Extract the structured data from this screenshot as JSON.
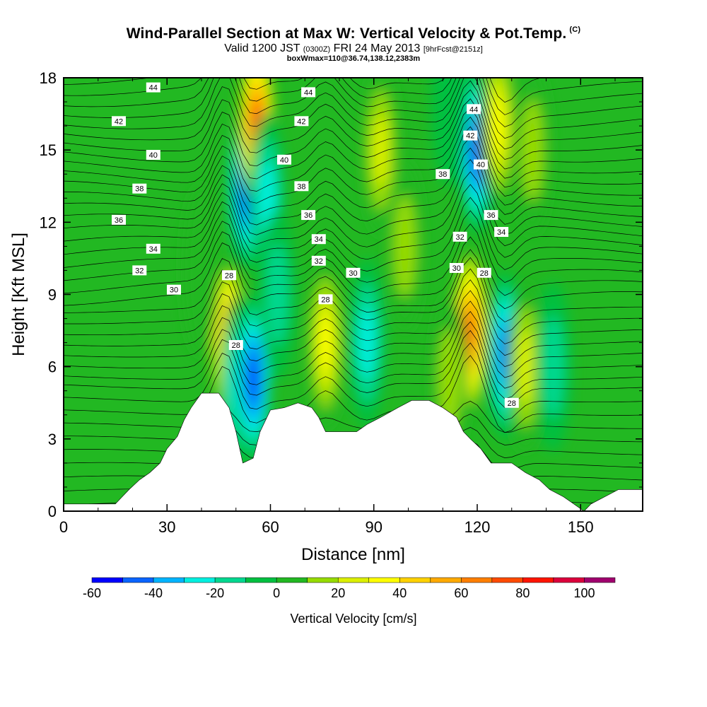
{
  "header": {
    "title": "Wind-Parallel Section at Max W: Vertical Velocity & Pot.Temp.",
    "title_unit": "(C)",
    "valid_prefix": "Valid 1200 JST",
    "valid_utc": "(0300Z)",
    "valid_date": "FRI 24 May 2013",
    "forecast": "[9hrFcst@2151z]",
    "boxline": "boxWmax=110@36.74,138.12,2383m"
  },
  "chart_data": {
    "type": "heatmap",
    "xlabel": "Distance [nm]",
    "ylabel": "Height [Kft MSL]",
    "xlim": [
      0,
      168
    ],
    "ylim": [
      0,
      18
    ],
    "xticks": [
      0,
      30,
      60,
      90,
      120,
      150
    ],
    "yticks": [
      0,
      3,
      6,
      9,
      12,
      15,
      18
    ],
    "colorbar": {
      "title": "Vertical Velocity [cm/s]",
      "levels": [
        -60,
        -50,
        -40,
        -30,
        -20,
        -10,
        0,
        10,
        20,
        30,
        40,
        50,
        60,
        70,
        80,
        90,
        100,
        110
      ],
      "tick_labels": [
        -60,
        -40,
        -20,
        0,
        20,
        40,
        60,
        80,
        100
      ],
      "colors": [
        "#0000ff",
        "#0a64ff",
        "#00b4ff",
        "#00f0e0",
        "#00d890",
        "#00c040",
        "#22b822",
        "#96dc00",
        "#dcf000",
        "#ffff00",
        "#ffd200",
        "#ffaa00",
        "#ff7f00",
        "#ff4b00",
        "#ff1400",
        "#dc003c",
        "#a0006e",
        "#6e0096"
      ]
    },
    "terrain": [
      [
        0,
        0.3
      ],
      [
        15,
        0.3
      ],
      [
        17,
        0.6
      ],
      [
        19,
        0.9
      ],
      [
        22,
        1.3
      ],
      [
        25,
        1.6
      ],
      [
        28,
        2.0
      ],
      [
        30,
        2.6
      ],
      [
        33,
        3.1
      ],
      [
        35,
        3.8
      ],
      [
        37,
        4.3
      ],
      [
        40,
        4.9
      ],
      [
        45,
        4.9
      ],
      [
        48,
        4.3
      ],
      [
        50,
        3.3
      ],
      [
        52,
        2.0
      ],
      [
        55,
        2.2
      ],
      [
        57,
        3.3
      ],
      [
        60,
        4.2
      ],
      [
        64,
        4.3
      ],
      [
        68,
        4.5
      ],
      [
        72,
        4.3
      ],
      [
        74,
        3.9
      ],
      [
        76,
        3.3
      ],
      [
        85,
        3.3
      ],
      [
        88,
        3.6
      ],
      [
        92,
        3.9
      ],
      [
        97,
        4.3
      ],
      [
        101,
        4.6
      ],
      [
        106,
        4.6
      ],
      [
        110,
        4.3
      ],
      [
        114,
        3.9
      ],
      [
        116,
        3.3
      ],
      [
        118,
        3.0
      ],
      [
        121,
        2.6
      ],
      [
        124,
        2.0
      ],
      [
        130,
        2.0
      ],
      [
        134,
        1.6
      ],
      [
        138,
        1.3
      ],
      [
        141,
        0.9
      ],
      [
        145,
        0.6
      ],
      [
        148,
        0.3
      ],
      [
        151,
        0.0
      ],
      [
        153,
        0.3
      ],
      [
        157,
        0.6
      ],
      [
        161,
        0.9
      ],
      [
        168,
        0.9
      ]
    ],
    "cells": [
      {
        "x": 48,
        "y": 7.0,
        "w": 83
      },
      {
        "x": 51,
        "y": 5.5,
        "w": -40
      },
      {
        "x": 55,
        "y": 5.5,
        "w": -55
      },
      {
        "x": 53,
        "y": 13.5,
        "w": -55
      },
      {
        "x": 56,
        "y": 16,
        "w": 90
      },
      {
        "x": 59,
        "y": 13,
        "w": -25
      },
      {
        "x": 76,
        "y": 7.0,
        "w": 42
      },
      {
        "x": 88,
        "y": 7.0,
        "w": -25
      },
      {
        "x": 92,
        "y": 15,
        "w": 25
      },
      {
        "x": 118,
        "y": 7.5,
        "w": 75
      },
      {
        "x": 112,
        "y": 5.5,
        "w": 22
      },
      {
        "x": 128,
        "y": 6.5,
        "w": -45
      },
      {
        "x": 134,
        "y": 6.0,
        "w": 25
      },
      {
        "x": 142,
        "y": 6.0,
        "w": -15
      },
      {
        "x": 120,
        "y": 15,
        "w": -55
      },
      {
        "x": 126,
        "y": 16,
        "w": 40
      },
      {
        "x": 112,
        "y": 17,
        "w": -10
      },
      {
        "x": 99,
        "y": 11,
        "w": 18
      },
      {
        "x": 62,
        "y": 9,
        "w": -15
      },
      {
        "x": 136,
        "y": 15,
        "w": 15
      },
      {
        "x": 40,
        "y": 10,
        "w": 12
      }
    ],
    "isentrope_labels": [
      {
        "text": "44",
        "x": 26,
        "y": 17.6
      },
      {
        "text": "42",
        "x": 16,
        "y": 16.2
      },
      {
        "text": "40",
        "x": 26,
        "y": 14.8
      },
      {
        "text": "38",
        "x": 22,
        "y": 13.4
      },
      {
        "text": "36",
        "x": 16,
        "y": 12.1
      },
      {
        "text": "34",
        "x": 26,
        "y": 10.9
      },
      {
        "text": "32",
        "x": 22,
        "y": 10.0
      },
      {
        "text": "30",
        "x": 32,
        "y": 9.2
      },
      {
        "text": "28",
        "x": 48,
        "y": 9.8
      },
      {
        "text": "28",
        "x": 50,
        "y": 6.9
      },
      {
        "text": "44",
        "x": 71,
        "y": 17.4
      },
      {
        "text": "42",
        "x": 69,
        "y": 16.2
      },
      {
        "text": "40",
        "x": 64,
        "y": 14.6
      },
      {
        "text": "38",
        "x": 69,
        "y": 13.5
      },
      {
        "text": "36",
        "x": 71,
        "y": 12.3
      },
      {
        "text": "34",
        "x": 74,
        "y": 11.3
      },
      {
        "text": "32",
        "x": 74,
        "y": 10.4
      },
      {
        "text": "30",
        "x": 84,
        "y": 9.9
      },
      {
        "text": "28",
        "x": 76,
        "y": 8.8
      },
      {
        "text": "44",
        "x": 119,
        "y": 16.7
      },
      {
        "text": "42",
        "x": 118,
        "y": 15.6
      },
      {
        "text": "40",
        "x": 121,
        "y": 14.4
      },
      {
        "text": "38",
        "x": 110,
        "y": 14.0
      },
      {
        "text": "36",
        "x": 124,
        "y": 12.3
      },
      {
        "text": "34",
        "x": 127,
        "y": 11.6
      },
      {
        "text": "32",
        "x": 115,
        "y": 11.4
      },
      {
        "text": "30",
        "x": 114,
        "y": 10.1
      },
      {
        "text": "28",
        "x": 122,
        "y": 9.9
      },
      {
        "text": "28",
        "x": 130,
        "y": 4.5
      }
    ]
  }
}
